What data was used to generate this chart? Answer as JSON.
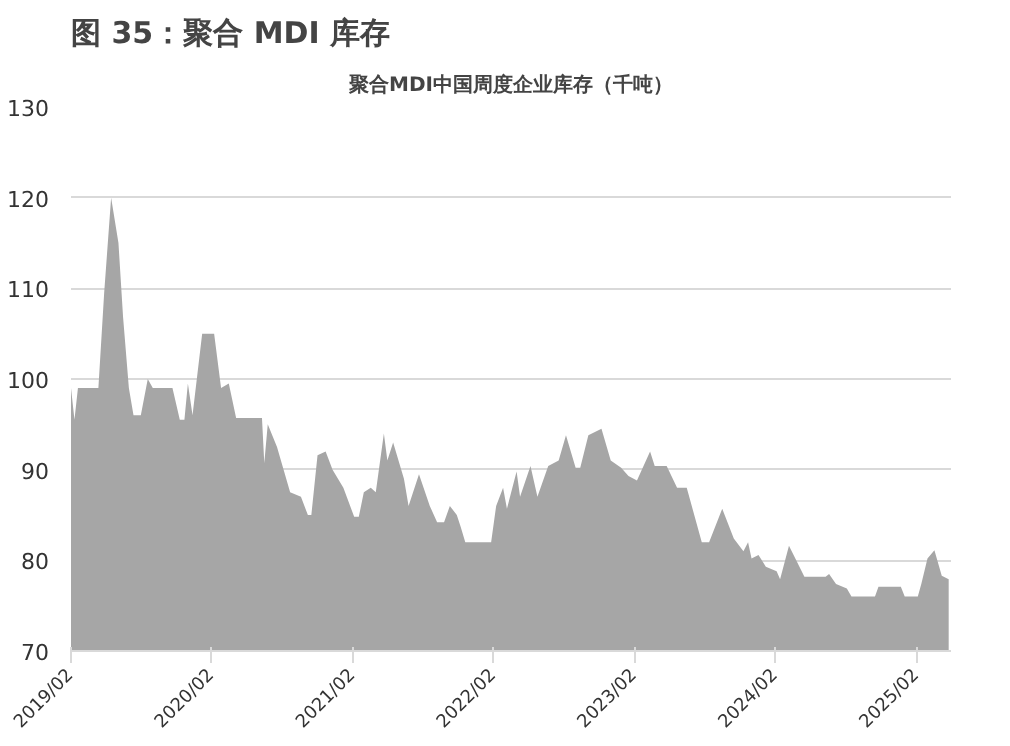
{
  "chart_data": {
    "type": "area",
    "title": "图 35：聚合 MDI 库存",
    "subtitle": "聚合MDI中国周度企业库存（千吨）",
    "x": [
      "2019-02-01",
      "2019-02-10",
      "2019-02-19",
      "2019-04-13",
      "2019-04-28",
      "2019-05-16",
      "2019-06-04",
      "2019-06-16",
      "2019-07-01",
      "2019-07-13",
      "2019-08-01",
      "2019-08-19",
      "2019-09-01",
      "2019-10-22",
      "2019-11-10",
      "2019-11-22",
      "2019-12-01",
      "2019-12-13",
      "2020-01-07",
      "2020-02-07",
      "2020-02-25",
      "2020-03-16",
      "2020-04-04",
      "2020-06-10",
      "2020-06-16",
      "2020-06-25",
      "2020-07-19",
      "2020-08-22",
      "2020-09-19",
      "2020-10-07",
      "2020-10-16",
      "2020-11-01",
      "2020-11-22",
      "2020-12-10",
      "2021-01-07",
      "2021-02-04",
      "2021-02-16",
      "2021-03-01",
      "2021-03-19",
      "2021-04-01",
      "2021-04-22",
      "2021-05-01",
      "2021-05-16",
      "2021-06-13",
      "2021-06-25",
      "2021-07-22",
      "2021-08-19",
      "2021-09-07",
      "2021-09-25",
      "2021-10-10",
      "2021-10-28",
      "2021-11-07",
      "2021-11-19",
      "2022-01-25",
      "2022-02-07",
      "2022-02-25",
      "2022-03-07",
      "2022-04-01",
      "2022-04-10",
      "2022-05-07",
      "2022-05-25",
      "2022-06-22",
      "2022-07-19",
      "2022-08-07",
      "2022-09-01",
      "2022-09-13",
      "2022-10-04",
      "2022-11-07",
      "2022-12-01",
      "2022-12-28",
      "2023-01-16",
      "2023-02-07",
      "2023-03-13",
      "2023-03-25",
      "2023-04-25",
      "2023-05-22",
      "2023-06-16",
      "2023-07-25",
      "2023-08-13",
      "2023-09-16",
      "2023-10-16",
      "2023-11-10",
      "2023-11-22",
      "2023-12-01",
      "2023-12-19",
      "2024-01-07",
      "2024-02-04",
      "2024-02-13",
      "2024-03-07",
      "2024-03-19",
      "2024-04-16",
      "2024-06-10",
      "2024-06-19",
      "2024-07-07",
      "2024-08-04",
      "2024-08-16",
      "2024-10-16",
      "2024-10-25",
      "2024-12-22",
      "2025-01-01",
      "2025-02-04",
      "2025-02-13",
      "2025-03-01",
      "2025-03-19",
      "2025-04-07",
      "2025-04-25"
    ],
    "series": [
      {
        "color": "#a6a6a6",
        "values": [
          99,
          95.5,
          99,
          99,
          109.5,
          120,
          115,
          106.8,
          99,
          96,
          96,
          100,
          99,
          99,
          95.5,
          95.5,
          99.5,
          96,
          105,
          105,
          99,
          99.5,
          95.7,
          95.7,
          90.7,
          95,
          92.5,
          87.5,
          87,
          85,
          85,
          91.6,
          92,
          90,
          88,
          84.8,
          84.8,
          87.5,
          88,
          87.5,
          94,
          91,
          93,
          89,
          86,
          89.5,
          86,
          84.2,
          84.2,
          86,
          85,
          83.7,
          82,
          82,
          86,
          88,
          85.7,
          89.8,
          87,
          90.4,
          87,
          90.4,
          91,
          93.8,
          90.2,
          90.2,
          93.8,
          94.5,
          91,
          90.2,
          89.3,
          88.8,
          92,
          90.4,
          90.4,
          88,
          88,
          82,
          82,
          85.7,
          82.4,
          81,
          82,
          80.2,
          80.6,
          79.3,
          78.8,
          77.9,
          81.6,
          80.6,
          78.2,
          78.2,
          78.5,
          77.4,
          76.9,
          76,
          76,
          77.1,
          77.1,
          76,
          76,
          77.4,
          80.2,
          81.1,
          78.3,
          77.9
        ]
      }
    ],
    "xlim": [
      "2019-02-01",
      "2025-05-01"
    ],
    "xticks": [
      {
        "value": "2019-02-01",
        "label": "2019/02"
      },
      {
        "value": "2020-02-01",
        "label": "2020/02"
      },
      {
        "value": "2021-02-01",
        "label": "2021/02"
      },
      {
        "value": "2022-02-01",
        "label": "2022/02"
      },
      {
        "value": "2023-02-01",
        "label": "2023/02"
      },
      {
        "value": "2024-02-01",
        "label": "2024/02"
      },
      {
        "value": "2025-02-01",
        "label": "2025/02"
      }
    ],
    "ylim": [
      70,
      130
    ],
    "yticks": [
      70,
      80,
      90,
      100,
      110,
      120,
      130
    ],
    "grid": "y"
  }
}
